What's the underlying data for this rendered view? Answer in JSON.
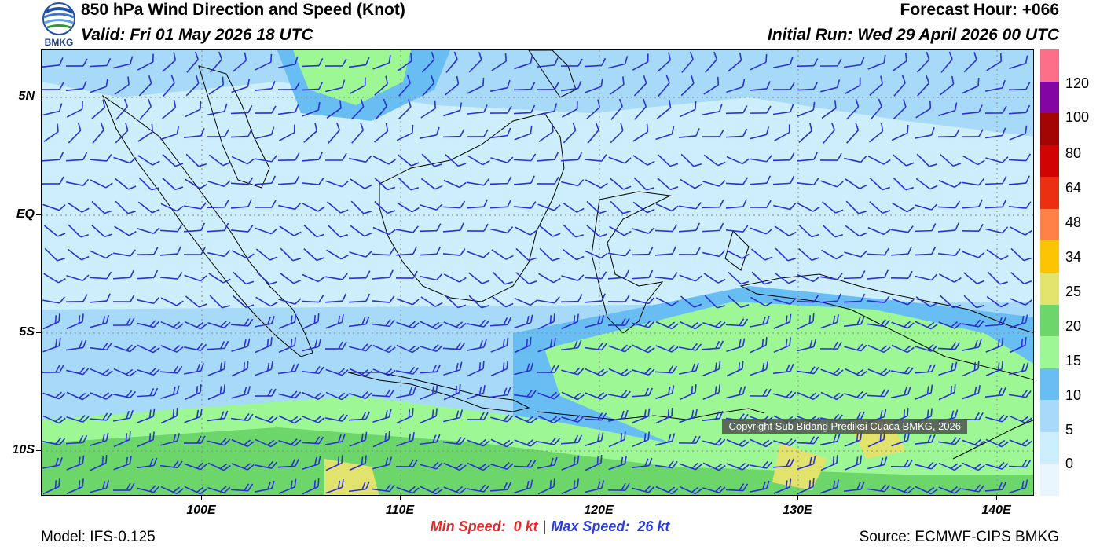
{
  "header": {
    "title": "850 hPa Wind Direction and Speed (Knot)",
    "valid": "Valid: Fri 01 May 2026 18 UTC",
    "forecast_hour": "Forecast Hour: +066",
    "initial_run": "Initial Run: Wed 29 April 2026 00 UTC",
    "logo_text": "BMKG"
  },
  "map": {
    "lat_labels": [
      "5N",
      "EQ",
      "5S",
      "10S"
    ],
    "lon_labels": [
      "100E",
      "110E",
      "120E",
      "130E",
      "140E"
    ],
    "copyright": "Copyright Sub Bidang Prediksi Cuaca BMKG, 2026",
    "colors": {
      "ocean_calm": "#cdeefc",
      "speed_5_10": "#a7d9f8",
      "speed_10_15": "#68bdf2",
      "speed_15_20": "#9cf794",
      "speed_20_25": "#6cd66a",
      "speed_25_34": "#e2e36c",
      "barb": "#2b30d8",
      "coast": "#000000"
    }
  },
  "colorbar": {
    "labels": [
      "120",
      "100",
      "80",
      "64",
      "48",
      "34",
      "25",
      "20",
      "15",
      "10",
      "5",
      "0"
    ],
    "colors": [
      "#fd6f88",
      "#8306a3",
      "#a20303",
      "#d10404",
      "#ea3011",
      "#fd8146",
      "#fcc403",
      "#e2e36c",
      "#6cd66a",
      "#9cf794",
      "#68bdf2",
      "#a7d9f8",
      "#cdeefc",
      "#eaf6fe"
    ]
  },
  "footer": {
    "min_speed_label": "Min Speed:",
    "min_speed_value": "0 kt",
    "separator": "|",
    "max_speed_label": "Max Speed:",
    "max_speed_value": "26 kt",
    "model": "Model: IFS-0.125",
    "source": "Source: ECMWF-CIPS BMKG"
  }
}
